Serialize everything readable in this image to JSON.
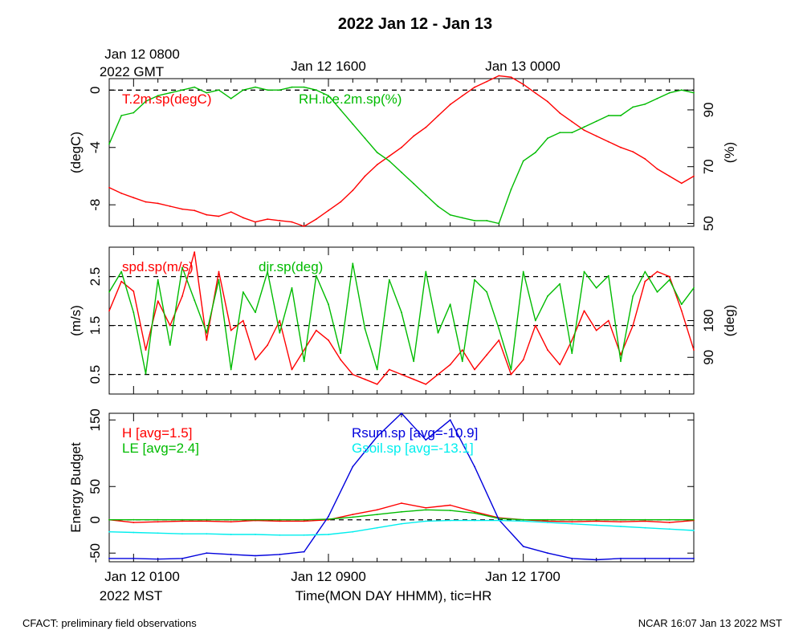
{
  "title": "2022 Jan 12 - Jan 13",
  "top_axis": {
    "labels": [
      "Jan 12 0800",
      "Jan 12 1600",
      "Jan 13 0000"
    ],
    "sublabel": "2022 GMT"
  },
  "bottom_axis": {
    "labels": [
      "Jan 12 0100",
      "Jan 12 0900",
      "Jan 12 1700"
    ],
    "sublabel": "2022 MST",
    "title": "Time(MON DAY HHMM), tic=HR"
  },
  "footer": {
    "left": "CFACT: preliminary field observations",
    "right": "NCAR 16:07 Jan 13 2022 MST"
  },
  "colors": {
    "red": "#ff0000",
    "green": "#00bb00",
    "blue": "#0000dd",
    "cyan": "#00eeee"
  },
  "chart_data": [
    {
      "type": "line",
      "name": "temperature-humidity",
      "x_range": [
        0,
        24
      ],
      "left_axis": {
        "label": "(degC)",
        "range": [
          -9.5,
          0.8
        ],
        "ticks": [
          0,
          -4,
          -8
        ],
        "tick_labels": [
          "0",
          "-4",
          "-8"
        ]
      },
      "right_axis": {
        "label": "(%)",
        "range": [
          49,
          101
        ],
        "ticks": [
          90,
          70,
          50
        ],
        "tick_labels": [
          "90",
          "70",
          "50"
        ]
      },
      "reference_lines_left": [
        0
      ],
      "series": [
        {
          "name": "T.2m.sp(degC)",
          "axis": "left",
          "color": "#ff0000",
          "x": [
            0,
            0.5,
            1,
            1.5,
            2,
            2.5,
            3,
            3.5,
            4,
            4.5,
            5,
            5.5,
            6,
            6.5,
            7,
            7.5,
            8,
            8.5,
            9,
            9.5,
            10,
            10.5,
            11,
            11.5,
            12,
            12.5,
            13,
            13.5,
            14,
            14.5,
            15,
            15.5,
            16,
            16.5,
            17,
            17.5,
            18,
            18.5,
            19,
            19.5,
            20,
            20.5,
            21,
            21.5,
            22,
            22.5,
            23,
            23.5,
            24
          ],
          "values": [
            -6.8,
            -7.2,
            -7.5,
            -7.8,
            -7.9,
            -8.1,
            -8.3,
            -8.4,
            -8.7,
            -8.8,
            -8.5,
            -8.9,
            -9.2,
            -9.0,
            -9.1,
            -9.2,
            -9.5,
            -9.0,
            -8.4,
            -7.8,
            -7.0,
            -6.0,
            -5.2,
            -4.6,
            -4.0,
            -3.2,
            -2.6,
            -1.8,
            -1.0,
            -0.4,
            0.2,
            0.6,
            1.0,
            0.9,
            0.4,
            -0.2,
            -0.8,
            -1.6,
            -2.2,
            -2.8,
            -3.2,
            -3.6,
            -4.0,
            -4.3,
            -4.8,
            -5.5,
            -6.0,
            -6.5,
            -6.0
          ]
        },
        {
          "name": "RH.ice.2m.sp(%)",
          "axis": "right",
          "color": "#00bb00",
          "x": [
            0,
            0.5,
            1,
            1.5,
            2,
            2.5,
            3,
            3.5,
            4,
            4.5,
            5,
            5.5,
            6,
            6.5,
            7,
            7.5,
            8,
            8.5,
            9,
            9.5,
            10,
            10.5,
            11,
            11.5,
            12,
            12.5,
            13,
            13.5,
            14,
            14.5,
            15,
            15.5,
            16,
            16.5,
            17,
            17.5,
            18,
            18.5,
            19,
            19.5,
            20,
            20.5,
            21,
            21.5,
            22,
            22.5,
            23,
            23.5,
            24
          ],
          "values": [
            78,
            88,
            89,
            93,
            95,
            96,
            97,
            98,
            96,
            97,
            94,
            97,
            98,
            97,
            97,
            98,
            98,
            97,
            95,
            90,
            85,
            80,
            75,
            72,
            68,
            64,
            60,
            56,
            53,
            52,
            51,
            51,
            50,
            62,
            72,
            75,
            80,
            82,
            82,
            84,
            86,
            88,
            88,
            91,
            92,
            94,
            96,
            97,
            96
          ]
        }
      ],
      "annotations": [
        "T.2m.sp(degC)",
        "RH.ice.2m.sp(%)"
      ]
    },
    {
      "type": "line",
      "name": "wind",
      "x_range": [
        0,
        24
      ],
      "left_axis": {
        "label": "(m/s)",
        "range": [
          0.1,
          3.1
        ],
        "ticks": [
          2.5,
          1.5,
          0.5
        ],
        "tick_labels": [
          "2.5",
          "1.5",
          "0.5"
        ]
      },
      "right_axis": {
        "label": "(deg)",
        "range": [
          0,
          360
        ],
        "ticks": [
          180,
          90
        ],
        "tick_labels": [
          "180",
          "90"
        ]
      },
      "reference_lines_left": [
        2.5,
        1.5,
        0.5
      ],
      "series": [
        {
          "name": "spd.sp(m/s)",
          "axis": "left",
          "color": "#ff0000",
          "x": [
            0,
            0.5,
            1,
            1.5,
            2,
            2.5,
            3,
            3.5,
            4,
            4.5,
            5,
            5.5,
            6,
            6.5,
            7,
            7.5,
            8,
            8.5,
            9,
            9.5,
            10,
            10.5,
            11,
            11.5,
            12,
            12.5,
            13,
            13.5,
            14,
            14.5,
            15,
            15.5,
            16,
            16.5,
            17,
            17.5,
            18,
            18.5,
            19,
            19.5,
            20,
            20.5,
            21,
            21.5,
            22,
            22.5,
            23,
            23.5,
            24
          ],
          "values": [
            1.8,
            2.4,
            2.2,
            1.0,
            2.0,
            1.5,
            2.1,
            3.0,
            1.2,
            2.6,
            1.4,
            1.6,
            0.8,
            1.1,
            1.6,
            0.6,
            1.0,
            1.4,
            1.2,
            0.8,
            0.5,
            0.4,
            0.3,
            0.6,
            0.5,
            0.4,
            0.3,
            0.5,
            0.7,
            1.0,
            0.6,
            0.9,
            1.2,
            0.5,
            0.8,
            1.5,
            1.0,
            0.7,
            1.2,
            1.8,
            1.4,
            1.6,
            0.9,
            1.5,
            2.4,
            2.6,
            2.5,
            1.8,
            1.0
          ]
        },
        {
          "name": "dir.sp(deg)",
          "axis": "right",
          "color": "#00bb00",
          "x": [
            0,
            0.5,
            1,
            1.5,
            2,
            2.5,
            3,
            3.5,
            4,
            4.5,
            5,
            5.5,
            6,
            6.5,
            7,
            7.5,
            8,
            8.5,
            9,
            9.5,
            10,
            10.5,
            11,
            11.5,
            12,
            12.5,
            13,
            13.5,
            14,
            14.5,
            15,
            15.5,
            16,
            16.5,
            17,
            17.5,
            18,
            18.5,
            19,
            19.5,
            20,
            20.5,
            21,
            21.5,
            22,
            22.5,
            23,
            23.5,
            24
          ],
          "values": [
            250,
            300,
            200,
            50,
            280,
            120,
            310,
            230,
            150,
            280,
            60,
            250,
            200,
            300,
            150,
            260,
            80,
            290,
            220,
            100,
            320,
            160,
            60,
            280,
            200,
            80,
            300,
            150,
            220,
            80,
            280,
            250,
            160,
            60,
            300,
            180,
            240,
            270,
            100,
            300,
            260,
            290,
            80,
            240,
            300,
            250,
            280,
            220,
            260
          ]
        }
      ],
      "annotations": [
        "spd.sp(m/s)",
        "dir.sp(deg)"
      ]
    },
    {
      "type": "line",
      "name": "energy-budget",
      "x_range": [
        0,
        24
      ],
      "left_axis": {
        "label": "Energy Budget",
        "range": [
          -63,
          160
        ],
        "ticks": [
          150,
          50,
          0,
          -50
        ],
        "tick_labels": [
          "150",
          "50",
          "0",
          "-50"
        ]
      },
      "reference_lines_left": [
        0
      ],
      "series": [
        {
          "name": "H [avg=1.5]",
          "color": "#ff0000",
          "x": [
            0,
            1,
            2,
            3,
            4,
            5,
            6,
            7,
            8,
            9,
            10,
            11,
            12,
            13,
            14,
            15,
            16,
            17,
            18,
            19,
            20,
            21,
            22,
            23,
            24
          ],
          "values": [
            0,
            -4,
            -3,
            -2,
            -2,
            -3,
            -1,
            -2,
            -2,
            0,
            8,
            15,
            25,
            18,
            22,
            12,
            3,
            0,
            -2,
            -3,
            -2,
            -3,
            -2,
            -4,
            -1
          ]
        },
        {
          "name": "LE [avg=2.4]",
          "color": "#00bb00",
          "x": [
            0,
            1,
            2,
            3,
            4,
            5,
            6,
            7,
            8,
            9,
            10,
            11,
            12,
            13,
            14,
            15,
            16,
            17,
            18,
            19,
            20,
            21,
            22,
            23,
            24
          ],
          "values": [
            0,
            0,
            0,
            0,
            0,
            0,
            0,
            0,
            0,
            1,
            4,
            8,
            12,
            15,
            14,
            10,
            2,
            0,
            0,
            0,
            0,
            0,
            0,
            0,
            0
          ]
        },
        {
          "name": "Rsum.sp [avg=-10.9]",
          "color": "#0000dd",
          "x": [
            0,
            1,
            2,
            3,
            4,
            5,
            6,
            7,
            8,
            9,
            10,
            11,
            12,
            13,
            14,
            15,
            16,
            17,
            18,
            19,
            20,
            21,
            22,
            23,
            24
          ],
          "values": [
            -58,
            -58,
            -59,
            -58,
            -50,
            -52,
            -54,
            -52,
            -48,
            5,
            80,
            125,
            160,
            120,
            150,
            80,
            0,
            -40,
            -50,
            -58,
            -60,
            -58,
            -58,
            -58,
            -58
          ]
        },
        {
          "name": "Gsoil.sp [avg=-13.1]",
          "color": "#00eeee",
          "x": [
            0,
            1,
            2,
            3,
            4,
            5,
            6,
            7,
            8,
            9,
            10,
            11,
            12,
            13,
            14,
            15,
            16,
            17,
            18,
            19,
            20,
            21,
            22,
            23,
            24
          ],
          "values": [
            -18,
            -19,
            -20,
            -21,
            -21,
            -22,
            -22,
            -23,
            -23,
            -22,
            -18,
            -12,
            -6,
            -2,
            -1,
            -1,
            -1,
            -2,
            -4,
            -6,
            -8,
            -10,
            -12,
            -14,
            -16
          ]
        }
      ],
      "annotations_left": [
        "H [avg=1.5]",
        "LE [avg=2.4]"
      ],
      "annotations_right": [
        "Rsum.sp [avg=-10.9]",
        "Gsoil.sp [avg=-13.1]"
      ]
    }
  ]
}
